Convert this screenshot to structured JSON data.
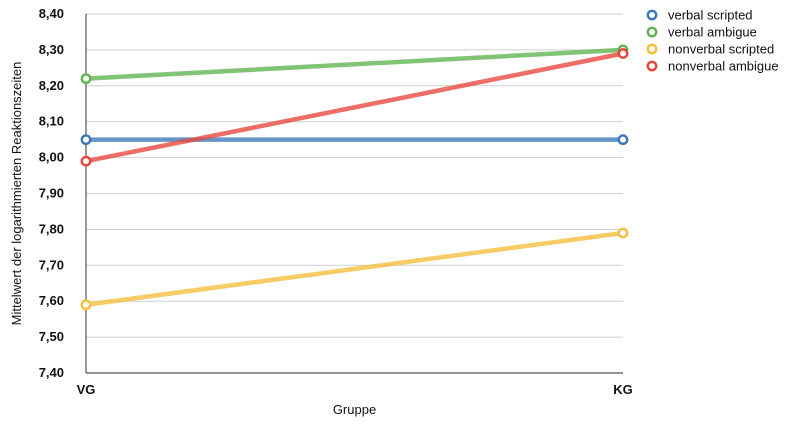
{
  "chart_data": {
    "type": "line",
    "title": "",
    "xlabel": "Gruppe",
    "ylabel": "Mittelwert der logarithmierten Reaktionszeiten",
    "categories": [
      "VG",
      "KG"
    ],
    "ylim": [
      7.4,
      8.4
    ],
    "yticks": [
      "7,40",
      "7,50",
      "7,60",
      "7,70",
      "7,80",
      "7,90",
      "8,00",
      "8,10",
      "8,20",
      "8,30",
      "8,40"
    ],
    "grid": true,
    "legend_position": "right",
    "series": [
      {
        "name": "verbal scripted",
        "values": [
          8.05,
          8.05
        ],
        "color": "#3a78b7"
      },
      {
        "name": "verbal ambigue",
        "values": [
          8.22,
          8.3
        ],
        "color": "#5fb34f"
      },
      {
        "name": "nonverbal scripted",
        "values": [
          7.59,
          7.79
        ],
        "color": "#f5bd3a"
      },
      {
        "name": "nonverbal ambigue",
        "values": [
          7.99,
          8.29
        ],
        "color": "#e8453c"
      }
    ]
  }
}
